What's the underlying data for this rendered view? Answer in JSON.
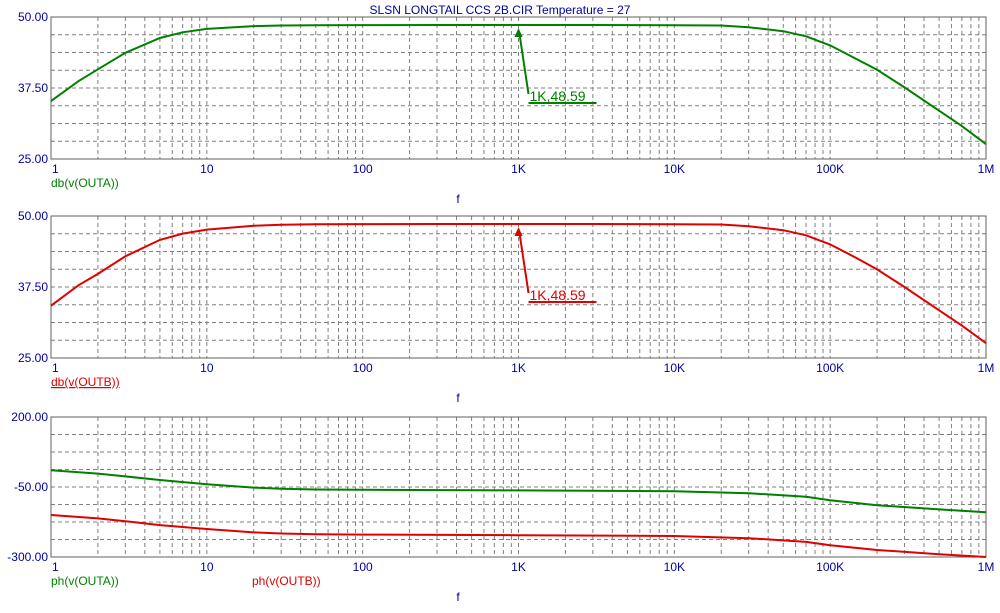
{
  "chart_data": {
    "title": "SLSN LONGTAIL CCS 2B.CIR Temperature = 27",
    "type": "line",
    "xscale": "log",
    "xlim": [
      1,
      1000000
    ],
    "xticks": [
      "1",
      "10",
      "100",
      "1K",
      "10K",
      "100K",
      "1M"
    ],
    "colors": {
      "green": "#008000",
      "red": "#e00000",
      "axis_text": "#0000a0",
      "frame": "#606060",
      "grid": "#808080"
    },
    "panels": [
      {
        "ylim": [
          25,
          50
        ],
        "yticks": [
          "50.00",
          "37.50",
          "25.00"
        ],
        "xlabel": "f",
        "series": [
          {
            "name": "db(v(OUTA))",
            "color": "green",
            "x": [
              1,
              1.5,
              2,
              3,
              5,
              7,
              10,
              20,
              30,
              50,
              100,
              300,
              1000,
              3000,
              10000,
              20000,
              30000,
              50000,
              70000,
              100000,
              150000,
              200000,
              300000,
              500000,
              700000,
              1000000
            ],
            "y": [
              35.2,
              38.7,
              40.8,
              43.7,
              46.3,
              47.3,
              47.9,
              48.4,
              48.5,
              48.55,
              48.57,
              48.59,
              48.59,
              48.59,
              48.55,
              48.5,
              48.2,
              47.5,
              46.6,
              45.0,
              42.5,
              40.7,
              37.6,
              33.5,
              30.8,
              27.6
            ]
          }
        ],
        "annotation": {
          "label": "1K,48.59",
          "x": 1000,
          "y": 48.59
        }
      },
      {
        "ylim": [
          25,
          50
        ],
        "yticks": [
          "50.00",
          "37.50",
          "25.00"
        ],
        "xlabel": "f",
        "series": [
          {
            "name": "db(v(OUTB))",
            "color": "red",
            "x": [
              1,
              1.5,
              2,
              3,
              5,
              7,
              10,
              20,
              30,
              50,
              100,
              300,
              1000,
              3000,
              10000,
              20000,
              30000,
              50000,
              70000,
              100000,
              150000,
              200000,
              300000,
              500000,
              700000,
              1000000
            ],
            "y": [
              34.2,
              37.8,
              39.8,
              42.9,
              45.8,
              46.9,
              47.6,
              48.3,
              48.45,
              48.53,
              48.57,
              48.59,
              48.59,
              48.59,
              48.55,
              48.5,
              48.2,
              47.5,
              46.6,
              45.0,
              42.5,
              40.6,
              37.5,
              33.4,
              30.7,
              27.6
            ]
          }
        ],
        "annotation": {
          "label": "1K,48.59",
          "x": 1000,
          "y": 48.59
        }
      },
      {
        "ylim": [
          -300,
          200
        ],
        "yticks": [
          "200.00",
          "-50.00",
          "-300.00"
        ],
        "xlabel": "f",
        "series": [
          {
            "name": "ph(v(OUTA))",
            "color": "green",
            "x": [
              1,
              2,
              3,
              5,
              10,
              20,
              30,
              50,
              100,
              1000,
              10000,
              30000,
              70000,
              100000,
              200000,
              500000,
              1000000
            ],
            "y": [
              10,
              -2,
              -12,
              -25,
              -40,
              -52,
              -56,
              -59,
              -60,
              -62,
              -65,
              -72,
              -85,
              -97,
              -115,
              -130,
              -140
            ]
          },
          {
            "name": "ph(v(OUTB))",
            "color": "red",
            "x": [
              1,
              2,
              3,
              5,
              10,
              20,
              30,
              50,
              100,
              1000,
              10000,
              30000,
              70000,
              100000,
              200000,
              500000,
              1000000
            ],
            "y": [
              -150,
              -162,
              -172,
              -186,
              -200,
              -212,
              -216,
              -219,
              -220,
              -222,
              -225,
              -233,
              -246,
              -258,
              -275,
              -290,
              -300
            ]
          }
        ]
      }
    ]
  }
}
